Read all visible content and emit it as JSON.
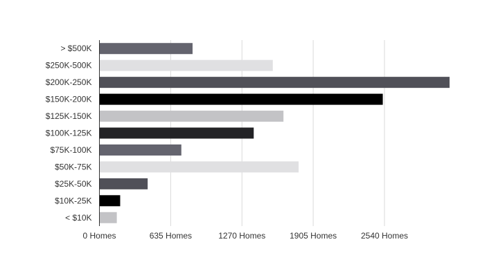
{
  "chart_data": {
    "type": "bar",
    "orientation": "horizontal",
    "title": "",
    "xlabel": "",
    "ylabel": "",
    "categories": [
      "> $500K",
      "$250K-500K",
      "$200K-250K",
      "$150K-200K",
      "$125K-150K",
      "$100K-125K",
      "$75K-100K",
      "$50K-75K",
      "$25K-50K",
      "$10K-25K",
      "< $10K"
    ],
    "values": [
      830,
      1545,
      3120,
      2525,
      1640,
      1375,
      730,
      1775,
      430,
      185,
      155
    ],
    "colors": [
      "#64646e",
      "#e0e0e2",
      "#505058",
      "#000000",
      "#c3c3c6",
      "#232326",
      "#64646e",
      "#e0e0e2",
      "#505058",
      "#000000",
      "#c3c3c6"
    ],
    "x_ticks": [
      {
        "value": 0,
        "label": "0 Homes"
      },
      {
        "value": 635,
        "label": "635 Homes"
      },
      {
        "value": 1270,
        "label": "1270 Homes"
      },
      {
        "value": 1905,
        "label": "1905 Homes"
      },
      {
        "value": 2540,
        "label": "2540 Homes"
      }
    ],
    "xlim": [
      0,
      3175
    ],
    "grid": true,
    "legend": "none"
  }
}
